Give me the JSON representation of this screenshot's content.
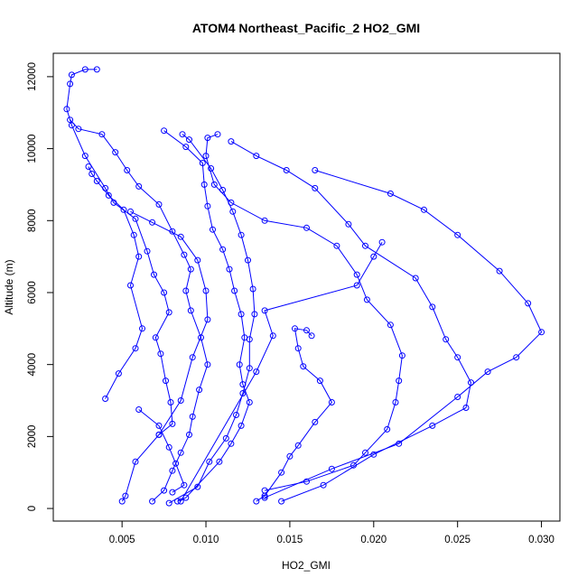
{
  "chart_data": {
    "type": "scatter",
    "title": "ATOM4 Northeast_Pacific_2 HO2_GMI",
    "xlabel": "HO2_GMI",
    "ylabel": "Altitude (m)",
    "xlim": [
      0.0009,
      0.0311
    ],
    "ylim": [
      -350,
      12650
    ],
    "xticks": [
      0.005,
      0.01,
      0.015,
      0.02,
      0.025,
      0.03
    ],
    "xtick_labels": [
      "0.005",
      "0.010",
      "0.015",
      "0.020",
      "0.025",
      "0.030"
    ],
    "yticks": [
      0,
      2000,
      4000,
      6000,
      8000,
      10000,
      12000
    ],
    "ytick_labels": [
      "0",
      "2000",
      "4000",
      "6000",
      "8000",
      "10000",
      "12000"
    ],
    "color": "#0000ff",
    "marker": "open-circle",
    "line": "connected",
    "grid": false,
    "legend": "none",
    "series": [
      {
        "points": [
          [
            0.005,
            200
          ],
          [
            0.0052,
            350
          ],
          [
            0.0058,
            1300
          ],
          [
            0.0072,
            2050
          ],
          [
            0.008,
            2350
          ],
          [
            0.0079,
            2950
          ],
          [
            0.0076,
            3550
          ],
          [
            0.0073,
            4300
          ],
          [
            0.007,
            4750
          ],
          [
            0.0078,
            5450
          ],
          [
            0.0075,
            6000
          ],
          [
            0.0069,
            6500
          ],
          [
            0.0065,
            7150
          ],
          [
            0.0058,
            8050
          ],
          [
            0.0045,
            8500
          ],
          [
            0.004,
            8900
          ],
          [
            0.0028,
            9800
          ],
          [
            0.002,
            10650
          ],
          [
            0.0017,
            11100
          ],
          [
            0.0019,
            11800
          ],
          [
            0.002,
            12050
          ],
          [
            0.0028,
            12200
          ],
          [
            0.0035,
            12200
          ]
        ]
      },
      {
        "points": [
          [
            0.0068,
            200
          ],
          [
            0.0075,
            500
          ],
          [
            0.008,
            1050
          ],
          [
            0.0085,
            1550
          ],
          [
            0.009,
            2050
          ],
          [
            0.0092,
            2550
          ],
          [
            0.0096,
            3300
          ],
          [
            0.0101,
            4000
          ],
          [
            0.0097,
            4750
          ],
          [
            0.0091,
            5500
          ],
          [
            0.0088,
            6050
          ],
          [
            0.0091,
            6650
          ],
          [
            0.0087,
            7050
          ],
          [
            0.008,
            7700
          ],
          [
            0.0072,
            8450
          ],
          [
            0.006,
            8950
          ],
          [
            0.0053,
            9400
          ],
          [
            0.0046,
            9900
          ],
          [
            0.0038,
            10400
          ],
          [
            0.0024,
            10550
          ],
          [
            0.0019,
            10800
          ]
        ]
      },
      {
        "points": [
          [
            0.0083,
            200
          ],
          [
            0.0088,
            300
          ],
          [
            0.0108,
            1300
          ],
          [
            0.0115,
            1800
          ],
          [
            0.0121,
            2300
          ],
          [
            0.0126,
            2950
          ],
          [
            0.0122,
            3450
          ],
          [
            0.012,
            4000
          ],
          [
            0.0123,
            4750
          ],
          [
            0.0121,
            5400
          ],
          [
            0.0117,
            6050
          ],
          [
            0.0114,
            6650
          ],
          [
            0.011,
            7200
          ],
          [
            0.0104,
            7750
          ],
          [
            0.0101,
            8400
          ],
          [
            0.0099,
            9000
          ],
          [
            0.0098,
            9600
          ],
          [
            0.0088,
            10050
          ],
          [
            0.0075,
            10500
          ]
        ]
      },
      {
        "points": [
          [
            0.0078,
            150
          ],
          [
            0.0095,
            600
          ],
          [
            0.0102,
            1300
          ],
          [
            0.0112,
            1950
          ],
          [
            0.0118,
            2600
          ],
          [
            0.0122,
            3200
          ],
          [
            0.0126,
            3900
          ],
          [
            0.0126,
            4700
          ],
          [
            0.0129,
            5400
          ],
          [
            0.0128,
            6100
          ],
          [
            0.0125,
            6900
          ],
          [
            0.0121,
            7600
          ],
          [
            0.0116,
            8250
          ],
          [
            0.011,
            8850
          ],
          [
            0.0103,
            9450
          ],
          [
            0.009,
            10250
          ],
          [
            0.0086,
            10400
          ]
        ]
      },
      {
        "points": [
          [
            0.013,
            200
          ],
          [
            0.0135,
            350
          ],
          [
            0.0145,
            1000
          ],
          [
            0.015,
            1450
          ],
          [
            0.0155,
            1750
          ],
          [
            0.0165,
            2400
          ],
          [
            0.0175,
            2950
          ],
          [
            0.0168,
            3550
          ],
          [
            0.0158,
            3950
          ],
          [
            0.0155,
            4450
          ],
          [
            0.0153,
            5000
          ],
          [
            0.016,
            4950
          ],
          [
            0.0163,
            4800
          ]
        ]
      },
      {
        "points": [
          [
            0.0135,
            500
          ],
          [
            0.016,
            750
          ],
          [
            0.0188,
            1200
          ],
          [
            0.0195,
            1550
          ],
          [
            0.0208,
            2200
          ],
          [
            0.0213,
            2950
          ],
          [
            0.0215,
            3550
          ],
          [
            0.0217,
            4250
          ],
          [
            0.021,
            5100
          ],
          [
            0.0196,
            5800
          ],
          [
            0.019,
            6500
          ],
          [
            0.0178,
            7300
          ],
          [
            0.016,
            7800
          ],
          [
            0.0135,
            8000
          ],
          [
            0.0115,
            8500
          ],
          [
            0.0105,
            9000
          ],
          [
            0.01,
            9800
          ],
          [
            0.0101,
            10300
          ],
          [
            0.0107,
            10400
          ]
        ]
      },
      {
        "points": [
          [
            0.0145,
            200
          ],
          [
            0.017,
            650
          ],
          [
            0.02,
            1500
          ],
          [
            0.0235,
            2300
          ],
          [
            0.0255,
            2800
          ],
          [
            0.0258,
            3500
          ],
          [
            0.025,
            4200
          ],
          [
            0.0243,
            4700
          ],
          [
            0.0235,
            5600
          ],
          [
            0.0225,
            6400
          ],
          [
            0.0195,
            7300
          ],
          [
            0.0185,
            7900
          ],
          [
            0.0165,
            8900
          ],
          [
            0.0148,
            9400
          ],
          [
            0.013,
            9800
          ],
          [
            0.0115,
            10200
          ]
        ]
      },
      {
        "points": [
          [
            0.0135,
            300
          ],
          [
            0.0175,
            1100
          ],
          [
            0.0215,
            1800
          ],
          [
            0.025,
            3100
          ],
          [
            0.0268,
            3800
          ],
          [
            0.0285,
            4200
          ],
          [
            0.03,
            4900
          ],
          [
            0.0292,
            5700
          ],
          [
            0.0275,
            6600
          ],
          [
            0.025,
            7600
          ],
          [
            0.023,
            8300
          ],
          [
            0.021,
            8750
          ],
          [
            0.0165,
            9400
          ]
        ]
      },
      {
        "points": [
          [
            0.004,
            3050
          ],
          [
            0.0048,
            3750
          ],
          [
            0.0058,
            4450
          ],
          [
            0.0062,
            5000
          ],
          [
            0.0055,
            6200
          ],
          [
            0.006,
            7000
          ],
          [
            0.0057,
            7600
          ],
          [
            0.0051,
            8300
          ],
          [
            0.0042,
            8700
          ],
          [
            0.0035,
            9100
          ],
          [
            0.0032,
            9300
          ],
          [
            0.003,
            9500
          ]
        ]
      },
      {
        "points": [
          [
            0.006,
            2750
          ],
          [
            0.0072,
            2300
          ],
          [
            0.0078,
            1700
          ],
          [
            0.0082,
            1250
          ],
          [
            0.0087,
            650
          ],
          [
            0.008,
            450
          ]
        ]
      },
      {
        "points": [
          [
            0.0072,
            2050
          ],
          [
            0.0085,
            3000
          ],
          [
            0.0092,
            4200
          ],
          [
            0.0101,
            5250
          ],
          [
            0.01,
            6050
          ],
          [
            0.0095,
            6900
          ],
          [
            0.0085,
            7550
          ],
          [
            0.0068,
            7950
          ],
          [
            0.0055,
            8250
          ]
        ]
      },
      {
        "points": [
          [
            0.0085,
            200
          ],
          [
            0.013,
            3800
          ],
          [
            0.014,
            4800
          ],
          [
            0.0135,
            5500
          ],
          [
            0.019,
            6200
          ],
          [
            0.02,
            7000
          ],
          [
            0.0205,
            7400
          ]
        ]
      }
    ]
  }
}
